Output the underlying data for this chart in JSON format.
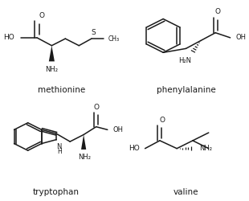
{
  "background_color": "#ffffff",
  "line_color": "#1a1a1a",
  "label_methionine": "methionine",
  "label_phenylalanine": "phenylalanine",
  "label_tryptophan": "tryptophan",
  "label_valine": "valine",
  "figsize": [
    3.1,
    2.5
  ],
  "dpi": 100
}
